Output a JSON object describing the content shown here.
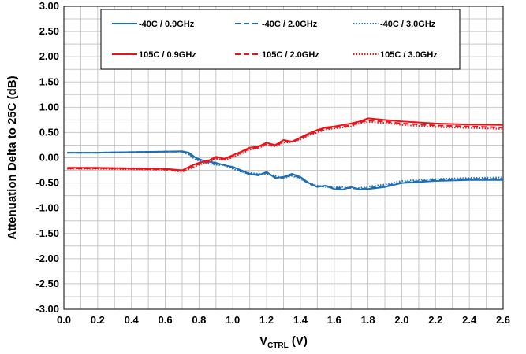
{
  "chart_data": {
    "type": "line",
    "title": "",
    "xlabel_main": "V",
    "xlabel_sub": "CTRL",
    "xlabel_unit": " (V)",
    "ylabel": "Attenuation Delta to 25C  (dB)",
    "xlim": [
      0,
      2.6
    ],
    "ylim": [
      -3.0,
      3.0
    ],
    "x_ticks": [
      "0.0",
      "0.2",
      "0.4",
      "0.6",
      "0.8",
      "1.0",
      "1.2",
      "1.4",
      "1.6",
      "1.8",
      "2.0",
      "2.2",
      "2.4",
      "2.6"
    ],
    "y_ticks": [
      "3.00",
      "2.50",
      "2.00",
      "1.50",
      "1.00",
      "0.50",
      "0.00",
      "-0.50",
      "-1.00",
      "-1.50",
      "-2.00",
      "-2.50",
      "-3.00"
    ],
    "grid": true,
    "legend_position": "top",
    "series": [
      {
        "name": "-40C /  0.9GHz",
        "color": "#1F6FB5",
        "dash": "solid",
        "x": [
          0.02,
          0.2,
          0.4,
          0.6,
          0.7,
          0.74,
          0.78,
          0.82,
          0.86,
          0.9,
          0.95,
          1.0,
          1.05,
          1.1,
          1.15,
          1.2,
          1.25,
          1.3,
          1.35,
          1.4,
          1.45,
          1.5,
          1.55,
          1.6,
          1.65,
          1.7,
          1.75,
          1.8,
          1.9,
          2.0,
          2.2,
          2.4,
          2.6
        ],
        "y": [
          0.1,
          0.1,
          0.11,
          0.12,
          0.13,
          0.1,
          0.0,
          -0.05,
          -0.08,
          -0.1,
          -0.15,
          -0.18,
          -0.25,
          -0.32,
          -0.35,
          -0.28,
          -0.4,
          -0.38,
          -0.32,
          -0.38,
          -0.5,
          -0.58,
          -0.55,
          -0.62,
          -0.63,
          -0.58,
          -0.63,
          -0.62,
          -0.58,
          -0.5,
          -0.46,
          -0.44,
          -0.44
        ]
      },
      {
        "name": "-40C /  2.0GHz",
        "color": "#1F6FB5",
        "dash": "dash",
        "x": [
          0.02,
          0.2,
          0.4,
          0.6,
          0.7,
          0.74,
          0.78,
          0.82,
          0.86,
          0.9,
          0.95,
          1.0,
          1.05,
          1.1,
          1.15,
          1.2,
          1.25,
          1.3,
          1.35,
          1.4,
          1.45,
          1.5,
          1.55,
          1.6,
          1.65,
          1.7,
          1.75,
          1.8,
          1.9,
          2.0,
          2.2,
          2.4,
          2.6
        ],
        "y": [
          0.1,
          0.1,
          0.11,
          0.12,
          0.12,
          0.08,
          -0.02,
          -0.06,
          -0.1,
          -0.12,
          -0.14,
          -0.2,
          -0.27,
          -0.33,
          -0.33,
          -0.3,
          -0.38,
          -0.4,
          -0.34,
          -0.4,
          -0.52,
          -0.56,
          -0.57,
          -0.6,
          -0.6,
          -0.6,
          -0.62,
          -0.6,
          -0.56,
          -0.49,
          -0.44,
          -0.42,
          -0.42
        ]
      },
      {
        "name": "-40C /  3.0GHz",
        "color": "#1F6FB5",
        "dash": "dot",
        "x": [
          0.02,
          0.2,
          0.4,
          0.6,
          0.7,
          0.74,
          0.78,
          0.82,
          0.86,
          0.9,
          0.95,
          1.0,
          1.05,
          1.1,
          1.15,
          1.2,
          1.25,
          1.3,
          1.35,
          1.4,
          1.45,
          1.5,
          1.55,
          1.6,
          1.65,
          1.7,
          1.75,
          1.8,
          1.9,
          2.0,
          2.2,
          2.4,
          2.6
        ],
        "y": [
          0.1,
          0.1,
          0.11,
          0.12,
          0.12,
          0.06,
          -0.04,
          -0.08,
          -0.12,
          -0.14,
          -0.15,
          -0.22,
          -0.28,
          -0.3,
          -0.32,
          -0.32,
          -0.36,
          -0.4,
          -0.36,
          -0.42,
          -0.5,
          -0.55,
          -0.58,
          -0.58,
          -0.58,
          -0.6,
          -0.6,
          -0.57,
          -0.53,
          -0.46,
          -0.42,
          -0.4,
          -0.39
        ]
      },
      {
        "name": "105C /  0.9GHz",
        "color": "#E8141A",
        "dash": "solid",
        "x": [
          0.02,
          0.2,
          0.4,
          0.6,
          0.7,
          0.76,
          0.8,
          0.86,
          0.9,
          0.95,
          1.0,
          1.05,
          1.1,
          1.15,
          1.2,
          1.25,
          1.3,
          1.35,
          1.4,
          1.45,
          1.5,
          1.55,
          1.6,
          1.65,
          1.7,
          1.75,
          1.8,
          1.9,
          2.0,
          2.2,
          2.4,
          2.6
        ],
        "y": [
          -0.2,
          -0.2,
          -0.21,
          -0.22,
          -0.25,
          -0.15,
          -0.1,
          -0.05,
          0.02,
          -0.02,
          0.05,
          0.12,
          0.2,
          0.22,
          0.3,
          0.25,
          0.35,
          0.32,
          0.4,
          0.48,
          0.55,
          0.6,
          0.62,
          0.65,
          0.68,
          0.72,
          0.78,
          0.75,
          0.72,
          0.68,
          0.66,
          0.65
        ]
      },
      {
        "name": "105C /  2.0GHz",
        "color": "#E8141A",
        "dash": "dash",
        "x": [
          0.02,
          0.2,
          0.4,
          0.6,
          0.7,
          0.76,
          0.8,
          0.86,
          0.9,
          0.95,
          1.0,
          1.05,
          1.1,
          1.15,
          1.2,
          1.25,
          1.3,
          1.35,
          1.4,
          1.45,
          1.5,
          1.55,
          1.6,
          1.65,
          1.7,
          1.75,
          1.8,
          1.9,
          2.0,
          2.2,
          2.4,
          2.6
        ],
        "y": [
          -0.21,
          -0.21,
          -0.22,
          -0.23,
          -0.26,
          -0.18,
          -0.12,
          -0.06,
          0.0,
          -0.04,
          0.03,
          0.1,
          0.18,
          0.2,
          0.28,
          0.24,
          0.32,
          0.32,
          0.38,
          0.46,
          0.52,
          0.58,
          0.6,
          0.62,
          0.64,
          0.7,
          0.74,
          0.72,
          0.68,
          0.64,
          0.62,
          0.6
        ]
      },
      {
        "name": "105C /  3.0GHz",
        "color": "#E8141A",
        "dash": "dot",
        "x": [
          0.02,
          0.2,
          0.4,
          0.6,
          0.7,
          0.76,
          0.8,
          0.86,
          0.9,
          0.95,
          1.0,
          1.05,
          1.1,
          1.15,
          1.2,
          1.25,
          1.3,
          1.35,
          1.4,
          1.45,
          1.5,
          1.55,
          1.6,
          1.65,
          1.7,
          1.75,
          1.8,
          1.9,
          2.0,
          2.2,
          2.4,
          2.6
        ],
        "y": [
          -0.22,
          -0.22,
          -0.23,
          -0.24,
          -0.28,
          -0.2,
          -0.14,
          -0.08,
          -0.02,
          -0.05,
          0.01,
          0.08,
          0.16,
          0.19,
          0.26,
          0.22,
          0.3,
          0.31,
          0.36,
          0.44,
          0.5,
          0.56,
          0.58,
          0.6,
          0.62,
          0.68,
          0.71,
          0.69,
          0.65,
          0.61,
          0.59,
          0.57
        ]
      }
    ]
  }
}
